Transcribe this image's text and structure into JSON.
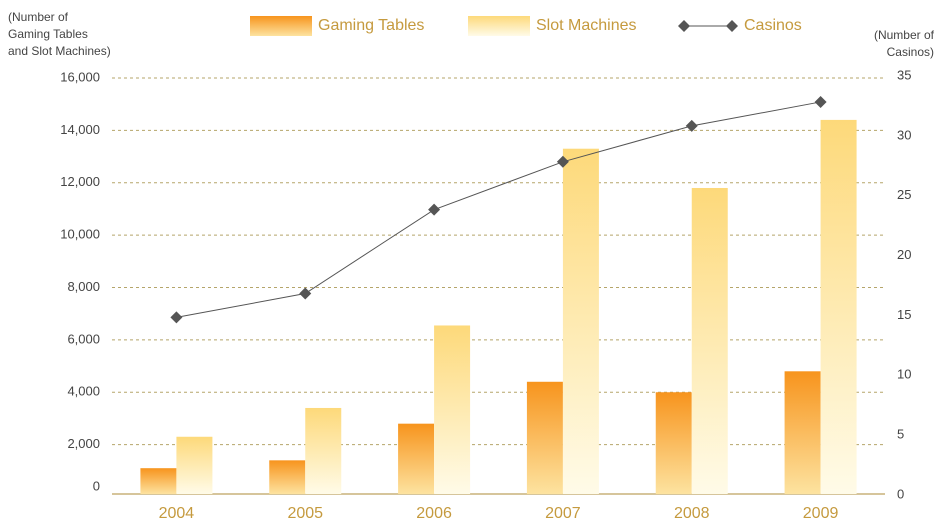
{
  "chart_data": {
    "type": "bar_line",
    "ylabel": [
      "(Number of",
      "Gaming Tables",
      "and Slot Machines)"
    ],
    "y2label": [
      "(Number of",
      "Casinos)"
    ],
    "categories": [
      "2004",
      "2005",
      "2006",
      "2007",
      "2008",
      "2009"
    ],
    "series": [
      {
        "name": "Gaming Tables",
        "color": "#f7941d",
        "values": [
          1100,
          1400,
          2800,
          4400,
          4000,
          4800
        ]
      },
      {
        "name": "Slot Machines",
        "color": "#fdd97a",
        "values": [
          2300,
          3400,
          6550,
          13300,
          11800,
          14400
        ]
      },
      {
        "name": "Casinos",
        "color": "#555555",
        "axis": "y2",
        "values": [
          15,
          17,
          24,
          28,
          31,
          33
        ]
      }
    ],
    "ylim": [
      0,
      16000
    ],
    "yticks": [
      0,
      {
        "value": 2000,
        "label": "2,000"
      },
      {
        "value": 4000,
        "label": "4,000"
      },
      {
        "value": 6000,
        "label": "6,000"
      },
      {
        "value": 8000,
        "label": "8,000"
      },
      {
        "value": 10000,
        "label": "10,000"
      },
      {
        "value": 12000,
        "label": "12,000"
      },
      {
        "value": 14000,
        "label": "14,000"
      },
      {
        "value": 16000,
        "label": "16,000"
      }
    ],
    "y2lim": [
      0,
      35
    ],
    "y2ticks": [
      0,
      5,
      10,
      15,
      20,
      25,
      30,
      35
    ],
    "grid": true
  }
}
